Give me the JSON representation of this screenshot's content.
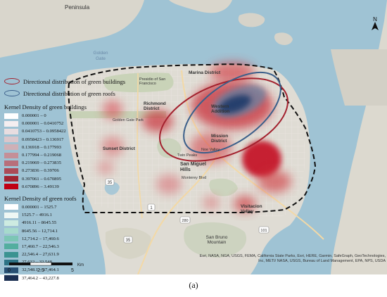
{
  "caption": "(a)",
  "north_label": "N",
  "colors": {
    "water": "#9fc3d4",
    "land": "#dfdcd4",
    "boundary": "#111111",
    "green_buildings_ellipse": "#a3212e",
    "green_roofs_ellipse": "#3b5f8a"
  },
  "legend": {
    "ellipses": [
      {
        "label": "Directional distribution of green buildings",
        "color": "#a3212e"
      },
      {
        "label": "Directional distribution of green roofs",
        "color": "#3b5f8a"
      }
    ],
    "buildings_title": "Kernel Density of green buildings",
    "buildings_classes": [
      {
        "label": "0.000001 – 0",
        "color": "#ffffff"
      },
      {
        "label": "0.000001 – 0.0410752",
        "color": "#f4eef0"
      },
      {
        "label": "0.0410753 – 0.0958422",
        "color": "#e8dde0"
      },
      {
        "label": "0.0958423 – 0.136917",
        "color": "#dac6cb"
      },
      {
        "label": "0.136918 – 0.177993",
        "color": "#cfb0b6"
      },
      {
        "label": "0.177994 – 0.219068",
        "color": "#c48f98"
      },
      {
        "label": "0.219069 – 0.273835",
        "color": "#b86f7a"
      },
      {
        "label": "0.273836 – 0.39706",
        "color": "#ac4b57"
      },
      {
        "label": "0.397061 – 0.670895",
        "color": "#a02532"
      },
      {
        "label": "0.670896 – 3.49139",
        "color": "#c00014"
      }
    ],
    "roofs_title": "Kernel Density of green roofs",
    "roofs_classes": [
      {
        "label": "0.000001 – 1525.7",
        "color": "#ffffff"
      },
      {
        "label": "1525.7 – 4916.1",
        "color": "#eef7f4"
      },
      {
        "label": "4916.11 – 8645.55",
        "color": "#cdebe1"
      },
      {
        "label": "8645.56 – 12,714.1",
        "color": "#a6dacc"
      },
      {
        "label": "12,714.2 – 17,460.6",
        "color": "#7cc6b5"
      },
      {
        "label": "17,460.7 – 22,546.3",
        "color": "#53ae9f"
      },
      {
        "label": "22,546.4 – 27,631.9",
        "color": "#3a9391"
      },
      {
        "label": "27,632 – 32,548",
        "color": "#2d7385"
      },
      {
        "label": "32,548.1 – 37,464.1",
        "color": "#274f73"
      },
      {
        "label": "37,464.2 – 43,227.8",
        "color": "#1b2f52"
      }
    ]
  },
  "scalebar": {
    "ticks": [
      "0",
      "2.5",
      "5"
    ],
    "unit": "Km"
  },
  "attribution": "Esri, NASA, NGA, USGS, FEMA, California State Parks, Esri, HERE, Garmin, SafeGraph, GeoTechnologies, Inc, METI/ NASA, USGS, Bureau of Land Management, EPA, NPS, USDA",
  "places": {
    "peninsula": "Peninsula",
    "golden_gate": "Golden Gate",
    "presidio": "Presidio of San Francisco",
    "marina": "Marina District",
    "richmond": "Richmond District",
    "golden_gate_park": "Golden Gate Park",
    "sunset": "Sunset District",
    "western_addition": "Western Addition",
    "mission": "Mission District",
    "twin_peaks": "Twin Peaks",
    "noe_valley": "Noe Valley",
    "san_miguel_hills": "San Miguel Hills",
    "monterey_blvd": "Monterey Blvd",
    "visitacion_valley": "Visitacion Valley",
    "san_bruno_mountain": "San Bruno Mountain",
    "route_35": "35",
    "route_1": "1",
    "route_280": "280",
    "route_101": "101"
  }
}
